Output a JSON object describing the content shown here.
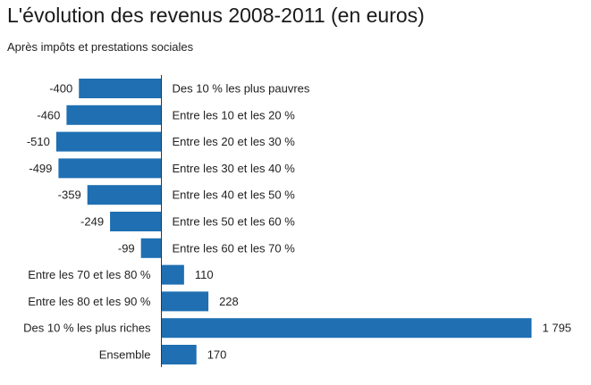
{
  "chart_data": {
    "type": "bar",
    "orientation": "horizontal",
    "title": "L'évolution des revenus 2008-2011 (en euros)",
    "subtitle": "Après impôts et prestations sociales",
    "categories": [
      "Des 10 % les plus pauvres",
      "Entre les 10 et les 20 %",
      "Entre les 20 et les 30 %",
      "Entre les 30 et les 40 %",
      "Entre les 40 et les 50 %",
      "Entre les 50 et les 60 %",
      "Entre les 60 et les 70 %",
      "Entre les 70 et les 80 %",
      "Entre les 80 et les 90 %",
      "Des 10 % les plus riches",
      "Ensemble"
    ],
    "values": [
      -400,
      -460,
      -510,
      -499,
      -359,
      -249,
      -99,
      110,
      228,
      1795,
      170
    ],
    "value_labels": [
      "-400",
      "-460",
      "-510",
      "-499",
      "-359",
      "-249",
      "-99",
      "110",
      "228",
      "1 795",
      "170"
    ],
    "bar_color": "#1f6fb2",
    "axis_color": "#333333",
    "xlim": [
      -520,
      1800
    ],
    "grid": false,
    "legend": "none"
  }
}
